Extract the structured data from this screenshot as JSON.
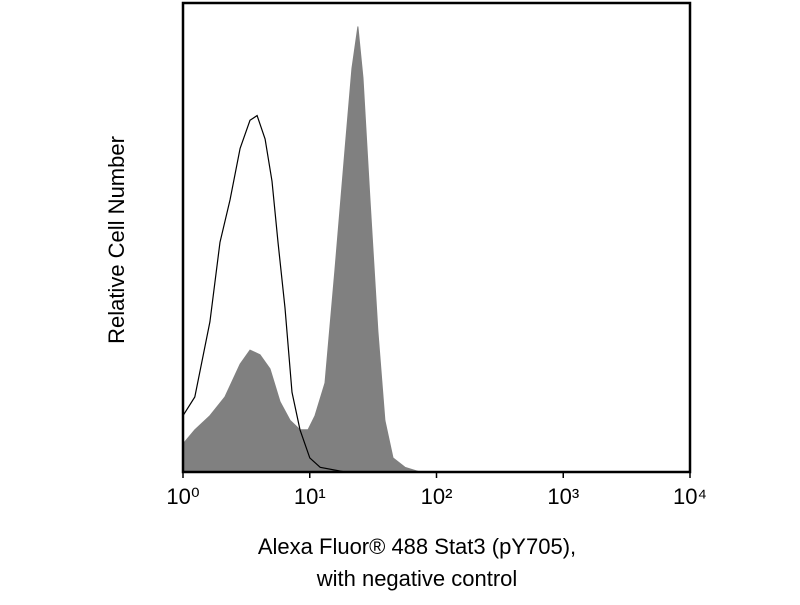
{
  "chart_data": {
    "type": "area",
    "xlabel": [
      "Alexa Fluor® 488 Stat3 (pY705),",
      "with negative control"
    ],
    "ylabel": "Relative Cell Number",
    "xscale": "log",
    "xlim": [
      1,
      10000
    ],
    "ylim": [
      0,
      100
    ],
    "xticks": [
      {
        "value": 1,
        "label": "10⁰"
      },
      {
        "value": 10,
        "label": "10¹"
      },
      {
        "value": 100,
        "label": "10²"
      },
      {
        "value": 1000,
        "label": "10³"
      },
      {
        "value": 10000,
        "label": "10⁴"
      }
    ],
    "series": [
      {
        "color": "#808080",
        "filled": true,
        "x": [
          1.0,
          1.24,
          1.63,
          2.14,
          2.82,
          3.38,
          4.05,
          4.86,
          5.83,
          7.0,
          8.38,
          9.69,
          11.0,
          13.2,
          15.8,
          19.0,
          21.5,
          24.0,
          26.3,
          29.9,
          34.5,
          39.2,
          45.4,
          56.4,
          74.1
        ],
        "values": [
          6,
          9,
          12,
          16,
          23,
          26,
          25,
          22,
          15,
          11,
          9,
          9,
          12,
          19,
          43,
          69,
          86,
          95,
          84,
          58,
          30,
          11,
          3,
          1,
          0
        ]
      },
      {
        "color": "#000000",
        "filled": false,
        "x": [
          1.0,
          1.24,
          1.63,
          1.96,
          2.35,
          2.82,
          3.38,
          3.84,
          4.44,
          5.04,
          5.62,
          6.38,
          7.24,
          8.38,
          10.0,
          12.1,
          19.0
        ],
        "values": [
          12,
          16,
          32,
          49,
          58,
          69,
          75,
          76,
          71,
          62,
          49,
          35,
          17,
          9,
          3,
          1,
          0
        ]
      }
    ]
  }
}
